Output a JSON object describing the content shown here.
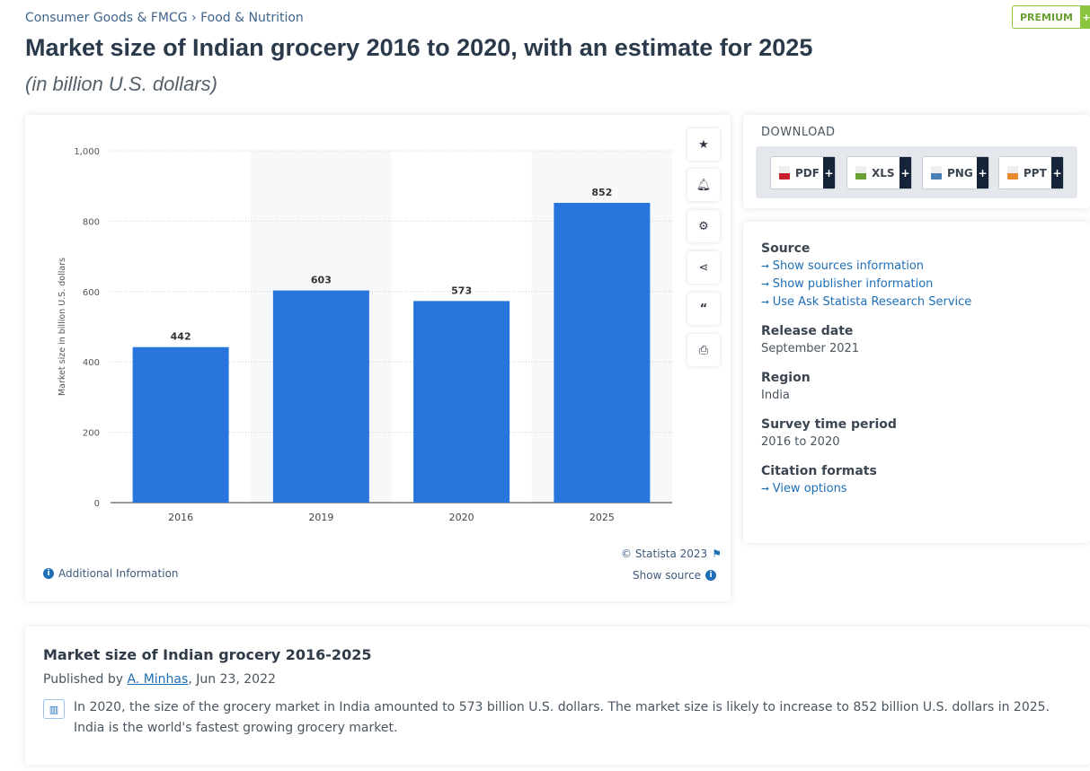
{
  "breadcrumb": {
    "items": [
      "Consumer Goods & FMCG",
      "Food & Nutrition"
    ],
    "separator": "›"
  },
  "premium_badge": {
    "label": "PREMIUM",
    "plus": "+"
  },
  "title": "Market size of Indian grocery 2016 to 2020, with an estimate for 2025",
  "subtitle": "(in billion U.S. dollars)",
  "chart_data": {
    "type": "bar",
    "categories": [
      "2016",
      "2019",
      "2020",
      "2025"
    ],
    "values": [
      442,
      603,
      573,
      852
    ],
    "ylabel": "Market size in billion U.S. dollars",
    "ylim": [
      0,
      1000
    ],
    "yticks": [
      "0",
      "200",
      "400",
      "600",
      "800",
      "1,000"
    ],
    "grid": true,
    "bar_color": "#2876dd"
  },
  "chart_tools": [
    "star-icon",
    "bell-icon",
    "gear-icon",
    "share-icon",
    "quote-icon",
    "print-icon"
  ],
  "chart_footer": {
    "copyright": "© Statista 2023",
    "additional_info": "Additional Information",
    "show_source": "Show source"
  },
  "download": {
    "heading": "DOWNLOAD",
    "buttons": [
      {
        "label": "PDF",
        "color": "#c8202a"
      },
      {
        "label": "XLS",
        "color": "#6aa032"
      },
      {
        "label": "PNG",
        "color": "#4a7fb5"
      },
      {
        "label": "PPT",
        "color": "#e88a2d"
      }
    ],
    "plus": "+"
  },
  "details": {
    "source_label": "Source",
    "source_links": [
      "Show sources information",
      "Show publisher information",
      "Use Ask Statista Research Service"
    ],
    "release_label": "Release date",
    "release_value": "September 2021",
    "region_label": "Region",
    "region_value": "India",
    "period_label": "Survey time period",
    "period_value": "2016 to 2020",
    "citation_label": "Citation formats",
    "citation_link": "View options"
  },
  "description": {
    "title": "Market size of Indian grocery 2016-2025",
    "published_prefix": "Published by ",
    "author": "A. Minhas",
    "date_suffix": ", Jun 23, 2022",
    "text": "In 2020, the size of the grocery market in India amounted to 573 billion U.S. dollars. The market size is likely to increase to 852 billion U.S. dollars in 2025. India is the world's fastest growing grocery market."
  }
}
